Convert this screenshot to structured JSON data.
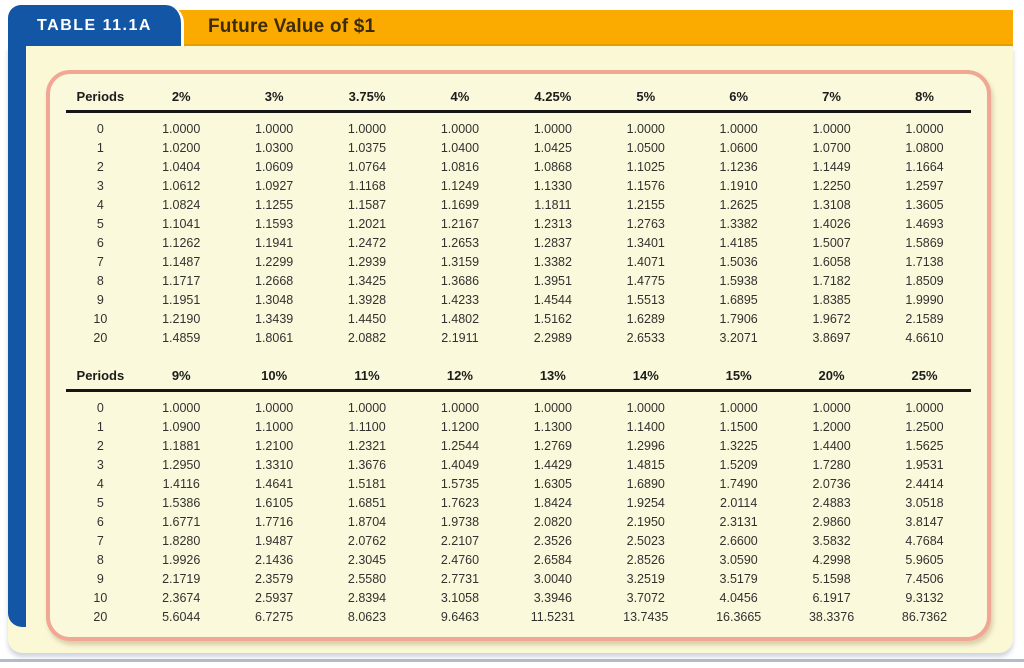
{
  "header": {
    "tab_label": "TABLE 11.1A",
    "title": "Future Value of $1"
  },
  "colors": {
    "tab_blue": "#1356A5",
    "bar_orange": "#FBAB00",
    "panel_cream": "#FAF8D5",
    "card_border_salmon": "#F0A794",
    "header_rule_black": "#161616",
    "title_text": "#3d2b05",
    "bottom_rule_gray": "#b5bcc8"
  },
  "chart_data": {
    "type": "table",
    "title": "Future Value of $1",
    "sections": [
      {
        "headers": [
          "Periods",
          "2%",
          "3%",
          "3.75%",
          "4%",
          "4.25%",
          "5%",
          "6%",
          "7%",
          "8%"
        ],
        "rows": [
          [
            "0",
            "1.0000",
            "1.0000",
            "1.0000",
            "1.0000",
            "1.0000",
            "1.0000",
            "1.0000",
            "1.0000",
            "1.0000"
          ],
          [
            "1",
            "1.0200",
            "1.0300",
            "1.0375",
            "1.0400",
            "1.0425",
            "1.0500",
            "1.0600",
            "1.0700",
            "1.0800"
          ],
          [
            "2",
            "1.0404",
            "1.0609",
            "1.0764",
            "1.0816",
            "1.0868",
            "1.1025",
            "1.1236",
            "1.1449",
            "1.1664"
          ],
          [
            "3",
            "1.0612",
            "1.0927",
            "1.1168",
            "1.1249",
            "1.1330",
            "1.1576",
            "1.1910",
            "1.2250",
            "1.2597"
          ],
          [
            "4",
            "1.0824",
            "1.1255",
            "1.1587",
            "1.1699",
            "1.1811",
            "1.2155",
            "1.2625",
            "1.3108",
            "1.3605"
          ],
          [
            "5",
            "1.1041",
            "1.1593",
            "1.2021",
            "1.2167",
            "1.2313",
            "1.2763",
            "1.3382",
            "1.4026",
            "1.4693"
          ],
          [
            "6",
            "1.1262",
            "1.1941",
            "1.2472",
            "1.2653",
            "1.2837",
            "1.3401",
            "1.4185",
            "1.5007",
            "1.5869"
          ],
          [
            "7",
            "1.1487",
            "1.2299",
            "1.2939",
            "1.3159",
            "1.3382",
            "1.4071",
            "1.5036",
            "1.6058",
            "1.7138"
          ],
          [
            "8",
            "1.1717",
            "1.2668",
            "1.3425",
            "1.3686",
            "1.3951",
            "1.4775",
            "1.5938",
            "1.7182",
            "1.8509"
          ],
          [
            "9",
            "1.1951",
            "1.3048",
            "1.3928",
            "1.4233",
            "1.4544",
            "1.5513",
            "1.6895",
            "1.8385",
            "1.9990"
          ],
          [
            "10",
            "1.2190",
            "1.3439",
            "1.4450",
            "1.4802",
            "1.5162",
            "1.6289",
            "1.7906",
            "1.9672",
            "2.1589"
          ],
          [
            "20",
            "1.4859",
            "1.8061",
            "2.0882",
            "2.1911",
            "2.2989",
            "2.6533",
            "3.2071",
            "3.8697",
            "4.6610"
          ]
        ]
      },
      {
        "headers": [
          "Periods",
          "9%",
          "10%",
          "11%",
          "12%",
          "13%",
          "14%",
          "15%",
          "20%",
          "25%"
        ],
        "rows": [
          [
            "0",
            "1.0000",
            "1.0000",
            "1.0000",
            "1.0000",
            "1.0000",
            "1.0000",
            "1.0000",
            "1.0000",
            "1.0000"
          ],
          [
            "1",
            "1.0900",
            "1.1000",
            "1.1100",
            "1.1200",
            "1.1300",
            "1.1400",
            "1.1500",
            "1.2000",
            "1.2500"
          ],
          [
            "2",
            "1.1881",
            "1.2100",
            "1.2321",
            "1.2544",
            "1.2769",
            "1.2996",
            "1.3225",
            "1.4400",
            "1.5625"
          ],
          [
            "3",
            "1.2950",
            "1.3310",
            "1.3676",
            "1.4049",
            "1.4429",
            "1.4815",
            "1.5209",
            "1.7280",
            "1.9531"
          ],
          [
            "4",
            "1.4116",
            "1.4641",
            "1.5181",
            "1.5735",
            "1.6305",
            "1.6890",
            "1.7490",
            "2.0736",
            "2.4414"
          ],
          [
            "5",
            "1.5386",
            "1.6105",
            "1.6851",
            "1.7623",
            "1.8424",
            "1.9254",
            "2.0114",
            "2.4883",
            "3.0518"
          ],
          [
            "6",
            "1.6771",
            "1.7716",
            "1.8704",
            "1.9738",
            "2.0820",
            "2.1950",
            "2.3131",
            "2.9860",
            "3.8147"
          ],
          [
            "7",
            "1.8280",
            "1.9487",
            "2.0762",
            "2.2107",
            "2.3526",
            "2.5023",
            "2.6600",
            "3.5832",
            "4.7684"
          ],
          [
            "8",
            "1.9926",
            "2.1436",
            "2.3045",
            "2.4760",
            "2.6584",
            "2.8526",
            "3.0590",
            "4.2998",
            "5.9605"
          ],
          [
            "9",
            "2.1719",
            "2.3579",
            "2.5580",
            "2.7731",
            "3.0040",
            "3.2519",
            "3.5179",
            "5.1598",
            "7.4506"
          ],
          [
            "10",
            "2.3674",
            "2.5937",
            "2.8394",
            "3.1058",
            "3.3946",
            "3.7072",
            "4.0456",
            "6.1917",
            "9.3132"
          ],
          [
            "20",
            "5.6044",
            "6.7275",
            "8.0623",
            "9.6463",
            "11.5231",
            "13.7435",
            "16.3665",
            "38.3376",
            "86.7362"
          ]
        ]
      }
    ]
  }
}
